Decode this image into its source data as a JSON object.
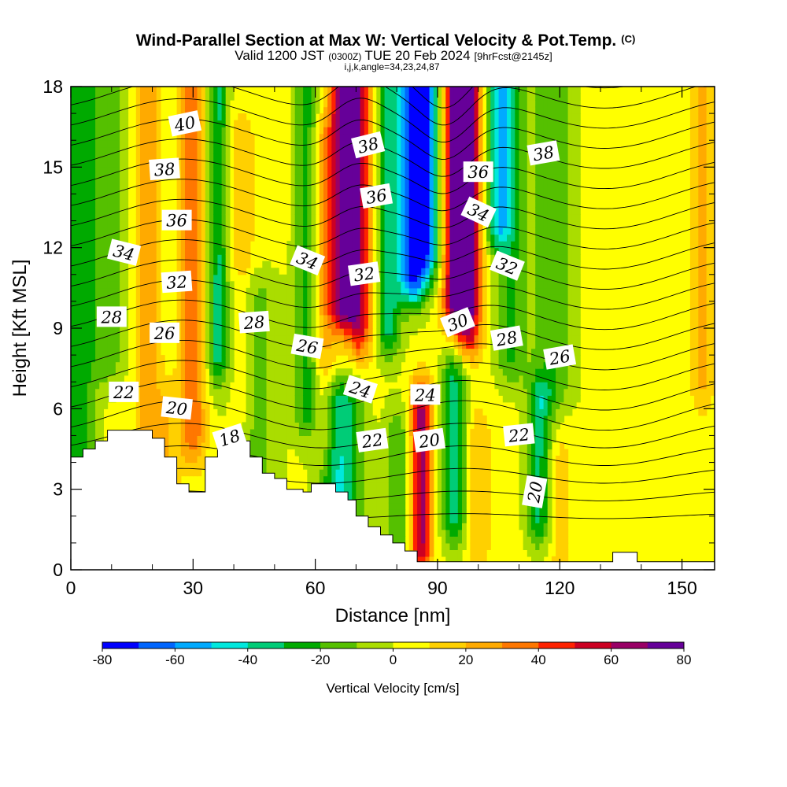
{
  "chart_data": {
    "type": "heatmap",
    "title": "Wind-Parallel Section at Max W: Vertical Velocity & Pot.Temp.",
    "title_mark": "(C)",
    "subtitle_prefix": "Valid 1200 JST",
    "subtitle_z": "(0300Z)",
    "subtitle_date": "TUE 20 Feb 2024",
    "subtitle_fcst": "[9hrFcst@2145z]",
    "subtitle2": "i,j,k,angle=34,23,24,87",
    "xlabel": "Distance [nm]",
    "ylabel": "Height [Kft MSL]",
    "xlim": [
      0,
      158
    ],
    "ylim": [
      0,
      18
    ],
    "x_ticks": [
      0,
      30,
      60,
      90,
      120,
      150
    ],
    "x_tick_labels": [
      "0",
      "30",
      "60",
      "90",
      "120",
      "150"
    ],
    "y_ticks": [
      0,
      3,
      6,
      9,
      12,
      15,
      18
    ],
    "y_tick_labels": [
      "0",
      "3",
      "6",
      "9",
      "12",
      "15",
      "18"
    ],
    "colorbar": {
      "label": "Vertical Velocity [cm/s]",
      "min": -80,
      "max": 80,
      "step": 10,
      "tick_values": [
        -80,
        -60,
        -40,
        -20,
        0,
        20,
        40,
        60,
        80
      ],
      "tick_labels": [
        "-80",
        "-60",
        "-40",
        "-20",
        "0",
        "20",
        "40",
        "60",
        "80"
      ],
      "colors": [
        "#0000ff",
        "#0066ff",
        "#00aaff",
        "#00e8dd",
        "#00cc77",
        "#00aa00",
        "#55c000",
        "#aadd00",
        "#ffff00",
        "#ffd000",
        "#ffaa00",
        "#ff7700",
        "#ff2200",
        "#cc0022",
        "#990066",
        "#660099"
      ]
    },
    "vertical_velocity_bands": [
      {
        "x": 2,
        "w": 4,
        "amp": -30,
        "z0": 0,
        "z1": 18
      },
      {
        "x": 9,
        "w": 4,
        "amp": -20,
        "z0": 8,
        "z1": 18
      },
      {
        "x": 19,
        "w": 3,
        "amp": 25,
        "z0": 4,
        "z1": 18
      },
      {
        "x": 30,
        "w": 3,
        "amp": 35,
        "z0": 5,
        "z1": 18
      },
      {
        "x": 36,
        "w": 2.5,
        "amp": -35,
        "z0": 8,
        "z1": 18
      },
      {
        "x": 42,
        "w": 3,
        "amp": 15,
        "z0": 6,
        "z1": 16
      },
      {
        "x": 58,
        "w": 3,
        "amp": -28,
        "z0": 6,
        "z1": 18
      },
      {
        "x": 62,
        "w": 3,
        "amp": 20,
        "z0": 5,
        "z1": 16
      },
      {
        "x": 67,
        "w": 3.5,
        "amp": 70,
        "z0": 10,
        "z1": 18
      },
      {
        "x": 71,
        "w": 3,
        "amp": 45,
        "z0": 9,
        "z1": 18
      },
      {
        "x": 78,
        "w": 3,
        "amp": -35,
        "z0": 9,
        "z1": 18
      },
      {
        "x": 84,
        "w": 3.5,
        "amp": -75,
        "z0": 11,
        "z1": 18
      },
      {
        "x": 88,
        "w": 3,
        "amp": -50,
        "z0": 12,
        "z1": 18
      },
      {
        "x": 95,
        "w": 3.5,
        "amp": 80,
        "z0": 10,
        "z1": 18
      },
      {
        "x": 98,
        "w": 3,
        "amp": 45,
        "z0": 9,
        "z1": 18
      },
      {
        "x": 105,
        "w": 3,
        "amp": -45,
        "z0": 13,
        "z1": 18
      },
      {
        "x": 108,
        "w": 3.5,
        "amp": -25,
        "z0": 8,
        "z1": 18
      },
      {
        "x": 118,
        "w": 5,
        "amp": -22,
        "z0": 7,
        "z1": 18
      },
      {
        "x": 155,
        "w": 3,
        "amp": 18,
        "z0": 7,
        "z1": 18
      },
      {
        "x": 66,
        "w": 5,
        "amp": -45,
        "z0": 0,
        "z1": 6
      },
      {
        "x": 80,
        "w": 3,
        "amp": -20,
        "z0": 1,
        "z1": 5
      },
      {
        "x": 86,
        "w": 2.5,
        "amp": 60,
        "z0": 1,
        "z1": 6
      },
      {
        "x": 94,
        "w": 3,
        "amp": -35,
        "z0": 2,
        "z1": 7
      },
      {
        "x": 100,
        "w": 3,
        "amp": 15,
        "z0": 1,
        "z1": 5
      },
      {
        "x": 115,
        "w": 3,
        "amp": -35,
        "z0": 2,
        "z1": 6
      },
      {
        "x": 120,
        "w": 3,
        "amp": 12,
        "z0": 0,
        "z1": 4
      },
      {
        "x": 45,
        "w": 6,
        "amp": -18,
        "z0": 3,
        "z1": 10
      },
      {
        "x": 24,
        "w": 3,
        "amp": 15,
        "z0": 2,
        "z1": 6
      }
    ],
    "terrain": [
      [
        0,
        4.2
      ],
      [
        3,
        4.2
      ],
      [
        3,
        4.5
      ],
      [
        6,
        4.5
      ],
      [
        6,
        4.8
      ],
      [
        9,
        4.8
      ],
      [
        9,
        5.2
      ],
      [
        20,
        5.2
      ],
      [
        20,
        4.9
      ],
      [
        23,
        4.9
      ],
      [
        23,
        4.2
      ],
      [
        26,
        4.2
      ],
      [
        26,
        3.2
      ],
      [
        29,
        3.2
      ],
      [
        29,
        2.9
      ],
      [
        33,
        2.9
      ],
      [
        33,
        4.2
      ],
      [
        36,
        4.2
      ],
      [
        36,
        5.1
      ],
      [
        40,
        5.1
      ],
      [
        40,
        4.8
      ],
      [
        44,
        4.8
      ],
      [
        44,
        4.2
      ],
      [
        47,
        4.2
      ],
      [
        47,
        3.6
      ],
      [
        50,
        3.6
      ],
      [
        50,
        3.4
      ],
      [
        53,
        3.4
      ],
      [
        53,
        3.0
      ],
      [
        57,
        3.0
      ],
      [
        57,
        2.9
      ],
      [
        59,
        2.9
      ],
      [
        59,
        3.2
      ],
      [
        65,
        3.2
      ],
      [
        65,
        2.9
      ],
      [
        68,
        2.9
      ],
      [
        68,
        2.6
      ],
      [
        70,
        2.6
      ],
      [
        70,
        2.0
      ],
      [
        73,
        2.0
      ],
      [
        73,
        1.6
      ],
      [
        76,
        1.6
      ],
      [
        76,
        1.3
      ],
      [
        79,
        1.3
      ],
      [
        79,
        1.0
      ],
      [
        82,
        1.0
      ],
      [
        82,
        0.7
      ],
      [
        85,
        0.7
      ],
      [
        85,
        0.3
      ],
      [
        133,
        0.3
      ],
      [
        133,
        0.65
      ],
      [
        139,
        0.65
      ],
      [
        139,
        0.3
      ],
      [
        158,
        0.3
      ]
    ],
    "theta_contours": [
      18,
      19,
      20,
      21,
      22,
      23,
      24,
      25,
      26,
      27,
      28,
      29,
      30,
      31,
      32,
      33,
      34,
      35,
      36,
      37,
      38,
      39,
      40
    ],
    "contour_labels": [
      {
        "text": "40",
        "x": 28,
        "z": 16.6,
        "rot": -12
      },
      {
        "text": "38",
        "x": 23,
        "z": 14.9,
        "rot": -4
      },
      {
        "text": "36",
        "x": 26,
        "z": 13.0,
        "rot": 0
      },
      {
        "text": "34",
        "x": 13,
        "z": 11.8,
        "rot": 14
      },
      {
        "text": "32",
        "x": 26,
        "z": 10.7,
        "rot": -4
      },
      {
        "text": "28",
        "x": 10,
        "z": 9.4,
        "rot": 0
      },
      {
        "text": "26",
        "x": 23,
        "z": 8.8,
        "rot": 0
      },
      {
        "text": "28",
        "x": 45,
        "z": 9.2,
        "rot": -4
      },
      {
        "text": "34",
        "x": 58,
        "z": 11.5,
        "rot": 22
      },
      {
        "text": "26",
        "x": 58,
        "z": 8.3,
        "rot": 10
      },
      {
        "text": "32",
        "x": 72,
        "z": 11.0,
        "rot": -8
      },
      {
        "text": "38",
        "x": 73,
        "z": 15.8,
        "rot": -14
      },
      {
        "text": "36",
        "x": 75,
        "z": 13.9,
        "rot": -10
      },
      {
        "text": "24",
        "x": 71,
        "z": 6.7,
        "rot": 18
      },
      {
        "text": "24",
        "x": 87,
        "z": 6.5,
        "rot": 0
      },
      {
        "text": "22",
        "x": 74,
        "z": 4.8,
        "rot": -8
      },
      {
        "text": "20",
        "x": 88,
        "z": 4.8,
        "rot": -8
      },
      {
        "text": "30",
        "x": 95,
        "z": 9.2,
        "rot": -22
      },
      {
        "text": "36",
        "x": 100,
        "z": 14.8,
        "rot": 0
      },
      {
        "text": "34",
        "x": 100,
        "z": 13.3,
        "rot": 25
      },
      {
        "text": "32",
        "x": 107,
        "z": 11.3,
        "rot": 22
      },
      {
        "text": "28",
        "x": 107,
        "z": 8.6,
        "rot": -10
      },
      {
        "text": "26",
        "x": 120,
        "z": 7.9,
        "rot": -10
      },
      {
        "text": "38",
        "x": 116,
        "z": 15.5,
        "rot": -10
      },
      {
        "text": "22",
        "x": 110,
        "z": 5.0,
        "rot": -6
      },
      {
        "text": "20",
        "x": 114,
        "z": 2.9,
        "rot": -80
      },
      {
        "text": "22",
        "x": 13,
        "z": 6.6,
        "rot": 0
      },
      {
        "text": "20",
        "x": 26,
        "z": 6.0,
        "rot": 6
      },
      {
        "text": "18",
        "x": 39,
        "z": 4.9,
        "rot": -18
      }
    ]
  }
}
